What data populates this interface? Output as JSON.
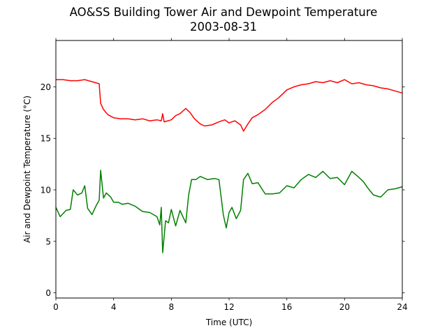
{
  "chart_data": {
    "type": "line",
    "title": "AO&SS Building Tower Air and Dewpoint Temperature",
    "subtitle": "2003-08-31",
    "xlabel": "Time (UTC)",
    "ylabel": "Air and Dewpoint Temperature (°C)",
    "xlim": [
      0,
      24
    ],
    "ylim": [
      -0.5,
      24.5
    ],
    "xticks": [
      0,
      4,
      8,
      12,
      16,
      20,
      24
    ],
    "yticks": [
      0,
      5,
      10,
      15,
      20
    ],
    "grid": false,
    "legend": "none",
    "series": [
      {
        "color": "#ff0000",
        "x": [
          0,
          0.5,
          1,
          1.5,
          2,
          2.5,
          3,
          3.1,
          3.3,
          3.6,
          4,
          4.5,
          5,
          5.5,
          6,
          6.5,
          7,
          7.3,
          7.4,
          7.5,
          8,
          8.3,
          8.6,
          9,
          9.3,
          9.6,
          10,
          10.3,
          10.8,
          11.3,
          11.7,
          12,
          12.4,
          12.8,
          13,
          13.3,
          13.6,
          14,
          14.5,
          15,
          15.4,
          16,
          16.5,
          17,
          17.5,
          18,
          18.5,
          19,
          19.5,
          20,
          20.5,
          21,
          21.5,
          22,
          22.5,
          23,
          23.5,
          24
        ],
        "values": [
          20.7,
          20.7,
          20.6,
          20.6,
          20.7,
          20.5,
          20.3,
          18.4,
          17.8,
          17.3,
          17.0,
          16.9,
          16.9,
          16.8,
          16.9,
          16.7,
          16.8,
          16.7,
          17.4,
          16.6,
          16.8,
          17.2,
          17.4,
          17.9,
          17.5,
          16.9,
          16.4,
          16.2,
          16.3,
          16.6,
          16.8,
          16.5,
          16.7,
          16.3,
          15.7,
          16.4,
          17.0,
          17.3,
          17.8,
          18.5,
          18.9,
          19.7,
          20.0,
          20.2,
          20.3,
          20.5,
          20.4,
          20.6,
          20.4,
          20.7,
          20.3,
          20.4,
          20.2,
          20.1,
          19.9,
          19.8,
          19.6,
          19.4
        ]
      },
      {
        "color": "#008000",
        "x": [
          0,
          0.3,
          0.7,
          1,
          1.2,
          1.5,
          1.8,
          2,
          2.2,
          2.5,
          2.8,
          3,
          3.1,
          3.3,
          3.5,
          3.8,
          4,
          4.3,
          4.6,
          5,
          5.5,
          6,
          6.5,
          7,
          7.2,
          7.3,
          7.4,
          7.6,
          7.8,
          8,
          8.3,
          8.6,
          9,
          9.2,
          9.4,
          9.7,
          10,
          10.5,
          11,
          11.3,
          11.6,
          11.8,
          12,
          12.2,
          12.5,
          12.8,
          13,
          13.3,
          13.6,
          14,
          14.5,
          15,
          15.5,
          16,
          16.5,
          17,
          17.5,
          18,
          18.5,
          19,
          19.5,
          20,
          20.5,
          21,
          21.3,
          21.6,
          22,
          22.5,
          23,
          23.5,
          24
        ],
        "values": [
          8.3,
          7.4,
          8.0,
          8.1,
          10.0,
          9.5,
          9.7,
          10.4,
          8.2,
          7.6,
          8.5,
          9.0,
          11.9,
          9.2,
          9.7,
          9.3,
          8.8,
          8.8,
          8.6,
          8.7,
          8.4,
          7.9,
          7.8,
          7.4,
          6.6,
          8.3,
          3.9,
          7.0,
          6.8,
          8.1,
          6.5,
          8.0,
          6.8,
          9.5,
          11.0,
          11.0,
          11.3,
          11.0,
          11.1,
          11.0,
          7.6,
          6.3,
          7.8,
          8.3,
          7.2,
          8.0,
          11.0,
          11.6,
          10.6,
          10.7,
          9.6,
          9.6,
          9.7,
          10.4,
          10.2,
          11.0,
          11.5,
          11.2,
          11.8,
          11.1,
          11.2,
          10.5,
          11.8,
          11.2,
          10.8,
          10.2,
          9.5,
          9.3,
          10.0,
          10.1,
          10.3
        ]
      }
    ]
  }
}
